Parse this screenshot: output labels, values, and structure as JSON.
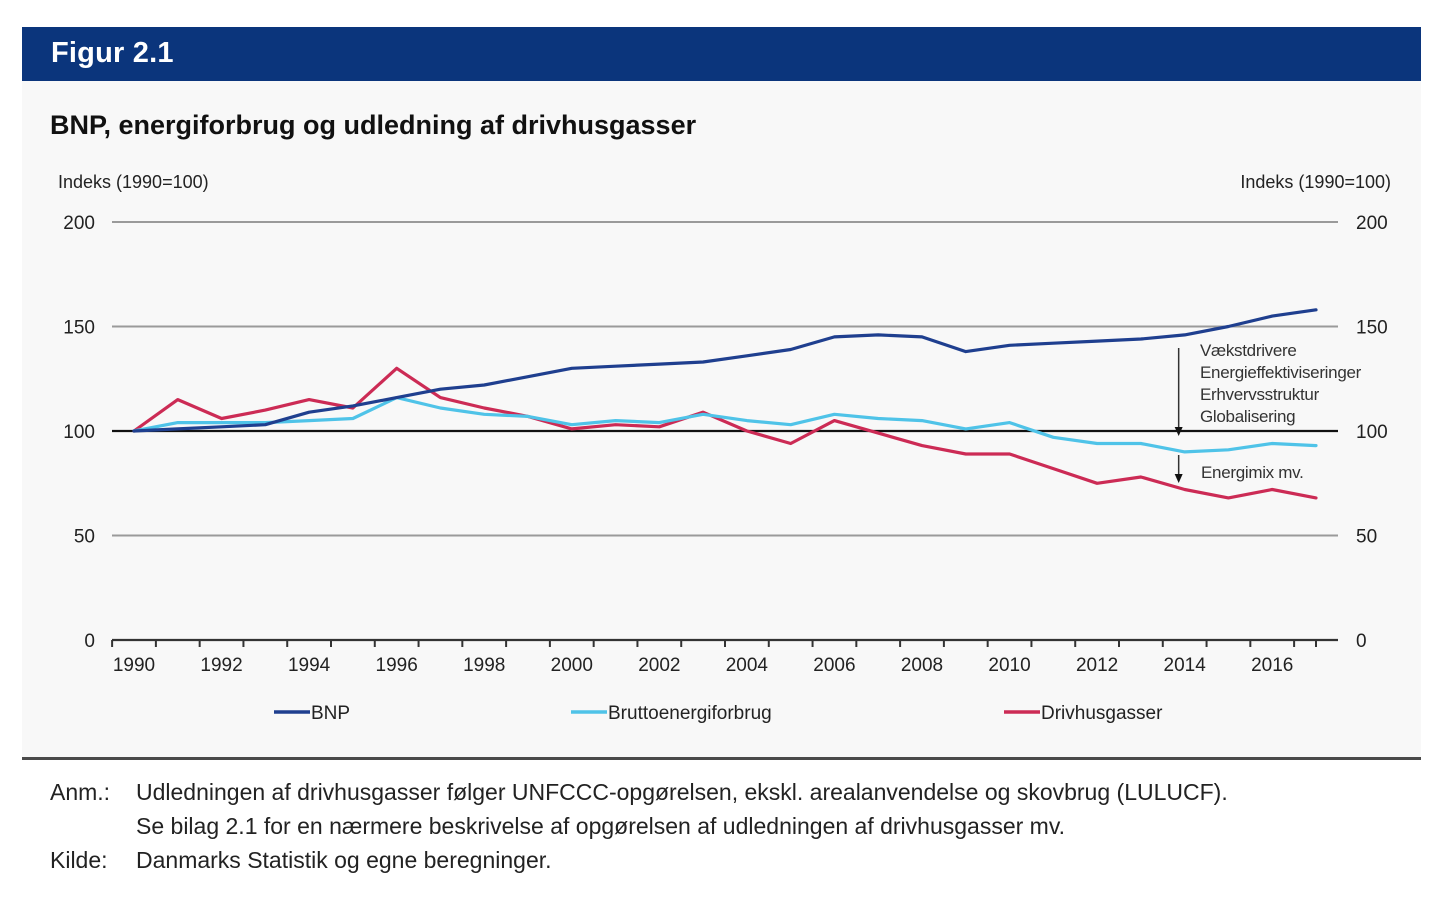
{
  "figure": {
    "label": "Figur 2.1",
    "header_color": "#0b357c"
  },
  "chart_data": {
    "type": "line",
    "title": "BNP, energiforbrug og udledning af drivhusgasser",
    "ylabel_left": "Indeks (1990=100)",
    "ylabel_right": "Indeks (1990=100)",
    "xlabel": "",
    "x": [
      1990,
      1991,
      1992,
      1993,
      1994,
      1995,
      1996,
      1997,
      1998,
      1999,
      2000,
      2001,
      2002,
      2003,
      2004,
      2005,
      2006,
      2007,
      2008,
      2009,
      2010,
      2011,
      2012,
      2013,
      2014,
      2015,
      2016,
      2017
    ],
    "xticks": [
      "1990",
      "1992",
      "1994",
      "1996",
      "1998",
      "2000",
      "2002",
      "2004",
      "2006",
      "2008",
      "2010",
      "2012",
      "2014",
      "2016"
    ],
    "yticks": [
      0,
      50,
      100,
      150,
      200
    ],
    "ylim": [
      0,
      200
    ],
    "xlim": [
      1989.5,
      2017.5
    ],
    "grid": true,
    "reference_line": 100,
    "legend_position": "bottom",
    "series": [
      {
        "name": "BNP",
        "color": "#1f3f8f",
        "values": [
          100,
          101,
          102,
          103,
          109,
          112,
          116,
          120,
          122,
          126,
          130,
          131,
          132,
          133,
          136,
          139,
          145,
          146,
          145,
          138,
          141,
          142,
          143,
          144,
          146,
          150,
          155,
          158
        ]
      },
      {
        "name": "Bruttoenergiforbrug",
        "color": "#4fc3e8",
        "values": [
          100,
          104,
          104,
          104,
          105,
          106,
          116,
          111,
          108,
          107,
          103,
          105,
          104,
          108,
          105,
          103,
          108,
          106,
          105,
          101,
          104,
          97,
          94,
          94,
          90,
          91,
          94,
          93
        ]
      },
      {
        "name": "Drivhusgasser",
        "color": "#cc2b55",
        "values": [
          100,
          115,
          106,
          110,
          115,
          111,
          130,
          116,
          111,
          107,
          101,
          103,
          102,
          109,
          100,
          94,
          105,
          99,
          93,
          89,
          89,
          82,
          75,
          78,
          72,
          68,
          72,
          68
        ]
      }
    ],
    "annotations": {
      "upper_arrow_label": [
        "Vækstdrivere",
        "Energieffektiviseringer",
        "Erhvervsstruktur",
        "Globalisering"
      ],
      "lower_arrow_label": "Energimix mv.",
      "arrow_year": 2014
    }
  },
  "notes": {
    "anm_label": "Anm.:",
    "anm_line1": "Udledningen af drivhusgasser følger UNFCCC-opgørelsen, ekskl. arealanvendelse og skovbrug (LULUCF).",
    "anm_line2": "Se bilag 2.1 for en nærmere beskrivelse af opgørelsen af udledningen af drivhusgasser mv.",
    "kilde_label": "Kilde:",
    "kilde_text": "Danmarks Statistik og egne beregninger."
  }
}
